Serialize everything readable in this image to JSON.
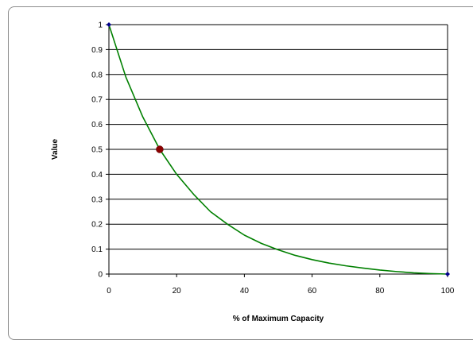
{
  "chart_data": {
    "type": "line",
    "title": "",
    "xlabel": "% of Maximum Capacity",
    "ylabel": "Value",
    "xlim": [
      0,
      100
    ],
    "ylim": [
      0,
      1
    ],
    "x_ticks": [
      0,
      20,
      40,
      60,
      80,
      100
    ],
    "y_ticks": [
      0,
      0.1,
      0.2,
      0.3,
      0.4,
      0.5,
      0.6,
      0.7,
      0.8,
      0.9,
      1
    ],
    "grid": {
      "horizontal": true,
      "vertical": false
    },
    "legend": "none",
    "series": [
      {
        "color": "#008000",
        "x": [
          0,
          5,
          10,
          15,
          20,
          25,
          30,
          35,
          40,
          45,
          50,
          55,
          60,
          65,
          70,
          75,
          80,
          85,
          90,
          95,
          100
        ],
        "y": [
          1,
          0.79,
          0.63,
          0.5,
          0.4,
          0.32,
          0.25,
          0.2,
          0.156,
          0.123,
          0.097,
          0.075,
          0.058,
          0.044,
          0.033,
          0.024,
          0.016,
          0.01,
          0.005,
          0.002,
          0
        ]
      }
    ],
    "endpoints": {
      "color": "#00008b",
      "x": [
        0,
        100
      ],
      "y": [
        1,
        0
      ]
    },
    "highlight_point": {
      "color": "#8b0000",
      "x": 15,
      "y": 0.5
    }
  }
}
